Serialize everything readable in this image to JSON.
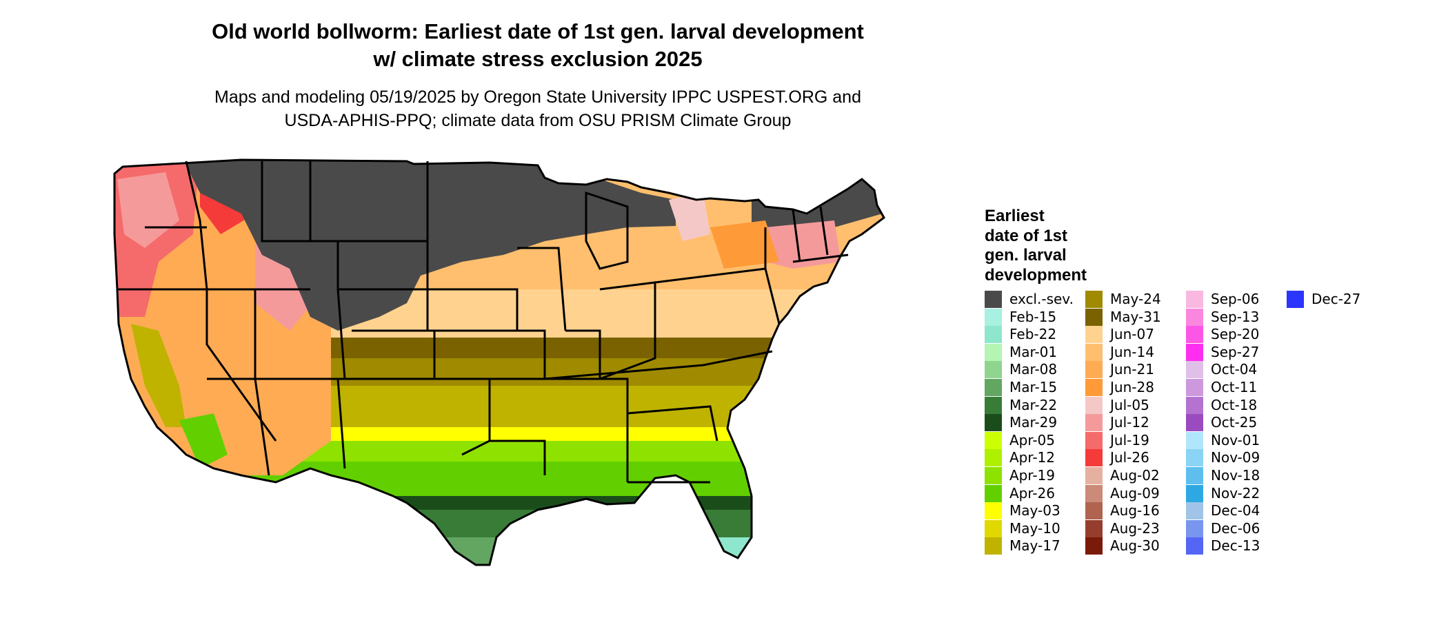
{
  "title_line1": "Old world bollworm: Earliest date of 1st gen. larval development",
  "title_line2": "w/ climate stress exclusion 2025",
  "subtitle_line1": "Maps and modeling 05/19/2025 by Oregon State University IPPC USPEST.ORG and",
  "subtitle_line2": "USDA-APHIS-PPQ; climate data from OSU PRISM Climate Group",
  "legend": {
    "title_lines": [
      "Earliest",
      "date of 1st",
      "gen. larval",
      "development"
    ],
    "items": [
      {
        "label": "excl.-sev.",
        "color": "#4a4a4a"
      },
      {
        "label": "Feb-15",
        "color": "#a8f0e0"
      },
      {
        "label": "Feb-22",
        "color": "#8ee6cc"
      },
      {
        "label": "Mar-01",
        "color": "#b4f5b4"
      },
      {
        "label": "Mar-08",
        "color": "#8fd48f"
      },
      {
        "label": "Mar-15",
        "color": "#62a662"
      },
      {
        "label": "Mar-22",
        "color": "#387c38"
      },
      {
        "label": "Mar-29",
        "color": "#1a4d1a"
      },
      {
        "label": "Apr-05",
        "color": "#ccff00"
      },
      {
        "label": "Apr-12",
        "color": "#aef000"
      },
      {
        "label": "Apr-19",
        "color": "#8fe200"
      },
      {
        "label": "Apr-26",
        "color": "#62d000"
      },
      {
        "label": "May-03",
        "color": "#ffff00"
      },
      {
        "label": "May-10",
        "color": "#e0d800"
      },
      {
        "label": "May-17",
        "color": "#bfb300"
      },
      {
        "label": "May-24",
        "color": "#9f8a00"
      },
      {
        "label": "May-31",
        "color": "#7a6200"
      },
      {
        "label": "Jun-07",
        "color": "#ffd28f"
      },
      {
        "label": "Jun-14",
        "color": "#ffbf6e"
      },
      {
        "label": "Jun-21",
        "color": "#ffab54"
      },
      {
        "label": "Jun-28",
        "color": "#ff9a38"
      },
      {
        "label": "Jul-05",
        "color": "#f5c8c8"
      },
      {
        "label": "Jul-12",
        "color": "#f59a9a"
      },
      {
        "label": "Jul-19",
        "color": "#f56a6a"
      },
      {
        "label": "Jul-26",
        "color": "#f53a3a"
      },
      {
        "label": "Aug-02",
        "color": "#e6b0a0"
      },
      {
        "label": "Aug-09",
        "color": "#cc8a78"
      },
      {
        "label": "Aug-16",
        "color": "#b06450"
      },
      {
        "label": "Aug-23",
        "color": "#963e2e"
      },
      {
        "label": "Aug-30",
        "color": "#7a1a0a"
      },
      {
        "label": "Sep-06",
        "color": "#f8b8e0"
      },
      {
        "label": "Sep-13",
        "color": "#fa86de"
      },
      {
        "label": "Sep-20",
        "color": "#fc56e6"
      },
      {
        "label": "Sep-27",
        "color": "#fe2ef0"
      },
      {
        "label": "Oct-04",
        "color": "#e0c0e8"
      },
      {
        "label": "Oct-11",
        "color": "#cc99dd"
      },
      {
        "label": "Oct-18",
        "color": "#b473d0"
      },
      {
        "label": "Oct-25",
        "color": "#9a4bc0"
      },
      {
        "label": "Nov-01",
        "color": "#b0e6fb"
      },
      {
        "label": "Nov-09",
        "color": "#8ad4f5"
      },
      {
        "label": "Nov-18",
        "color": "#5ebfee"
      },
      {
        "label": "Nov-22",
        "color": "#2ea8e2"
      },
      {
        "label": "Dec-04",
        "color": "#a0c4e8"
      },
      {
        "label": "Dec-06",
        "color": "#7896ee"
      },
      {
        "label": "Dec-13",
        "color": "#5566f5"
      },
      {
        "label": "Dec-27",
        "color": "#2b35fc"
      }
    ]
  },
  "colors": {
    "excluded": "#4a4a4a",
    "state_border": "#000000"
  }
}
